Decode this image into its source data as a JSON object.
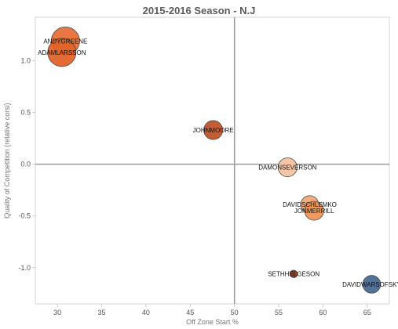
{
  "chart_data": {
    "type": "scatter",
    "title": "2015-2016 Season - N.J",
    "xlabel": "Off Zone Start %",
    "ylabel": "Quality of Competition (relative corsi)",
    "xlim": [
      27.5,
      67.5
    ],
    "ylim": [
      -1.35,
      1.42
    ],
    "x_ticks": [
      30,
      35,
      40,
      45,
      50,
      55,
      60,
      65
    ],
    "y_ticks": [
      1.0,
      0.5,
      0.0,
      -0.5,
      -1.0
    ],
    "x_tick_labels": [
      "30",
      "35",
      "40",
      "45",
      "50",
      "55",
      "60",
      "65"
    ],
    "y_tick_labels": [
      "1.0",
      "0.5",
      "0.0",
      "-0.5",
      "-1.0"
    ],
    "reference_lines": {
      "x": 50,
      "y": 0
    },
    "grid": false,
    "points": [
      {
        "label": "ANDYGREENE",
        "x": 30.9,
        "y": 1.19,
        "size": 1.0,
        "color": "#e8703a"
      },
      {
        "label": "ADAMLARSSON",
        "x": 30.5,
        "y": 1.08,
        "size": 1.0,
        "color": "#e06428"
      },
      {
        "label": "JOHNMOORE",
        "x": 47.6,
        "y": 0.33,
        "size": 0.45,
        "color": "#c05428"
      },
      {
        "label": "DAMONSEVERSON",
        "x": 56.0,
        "y": -0.03,
        "size": 0.45,
        "color": "#f2c4a0"
      },
      {
        "label": "DAVIDSCHLEMKO",
        "x": 58.5,
        "y": -0.39,
        "size": 0.4,
        "color": "#f0a878"
      },
      {
        "label": "JONMERRILL",
        "x": 59.0,
        "y": -0.45,
        "size": 0.45,
        "color": "#ee9558"
      },
      {
        "label": "SETHHELGESON",
        "x": 56.7,
        "y": -1.06,
        "size": 0.07,
        "color": "#8a3818"
      },
      {
        "label": "DAVIDWARSOFSKY",
        "x": 65.5,
        "y": -1.16,
        "size": 0.4,
        "color": "#4a6a94"
      }
    ]
  }
}
